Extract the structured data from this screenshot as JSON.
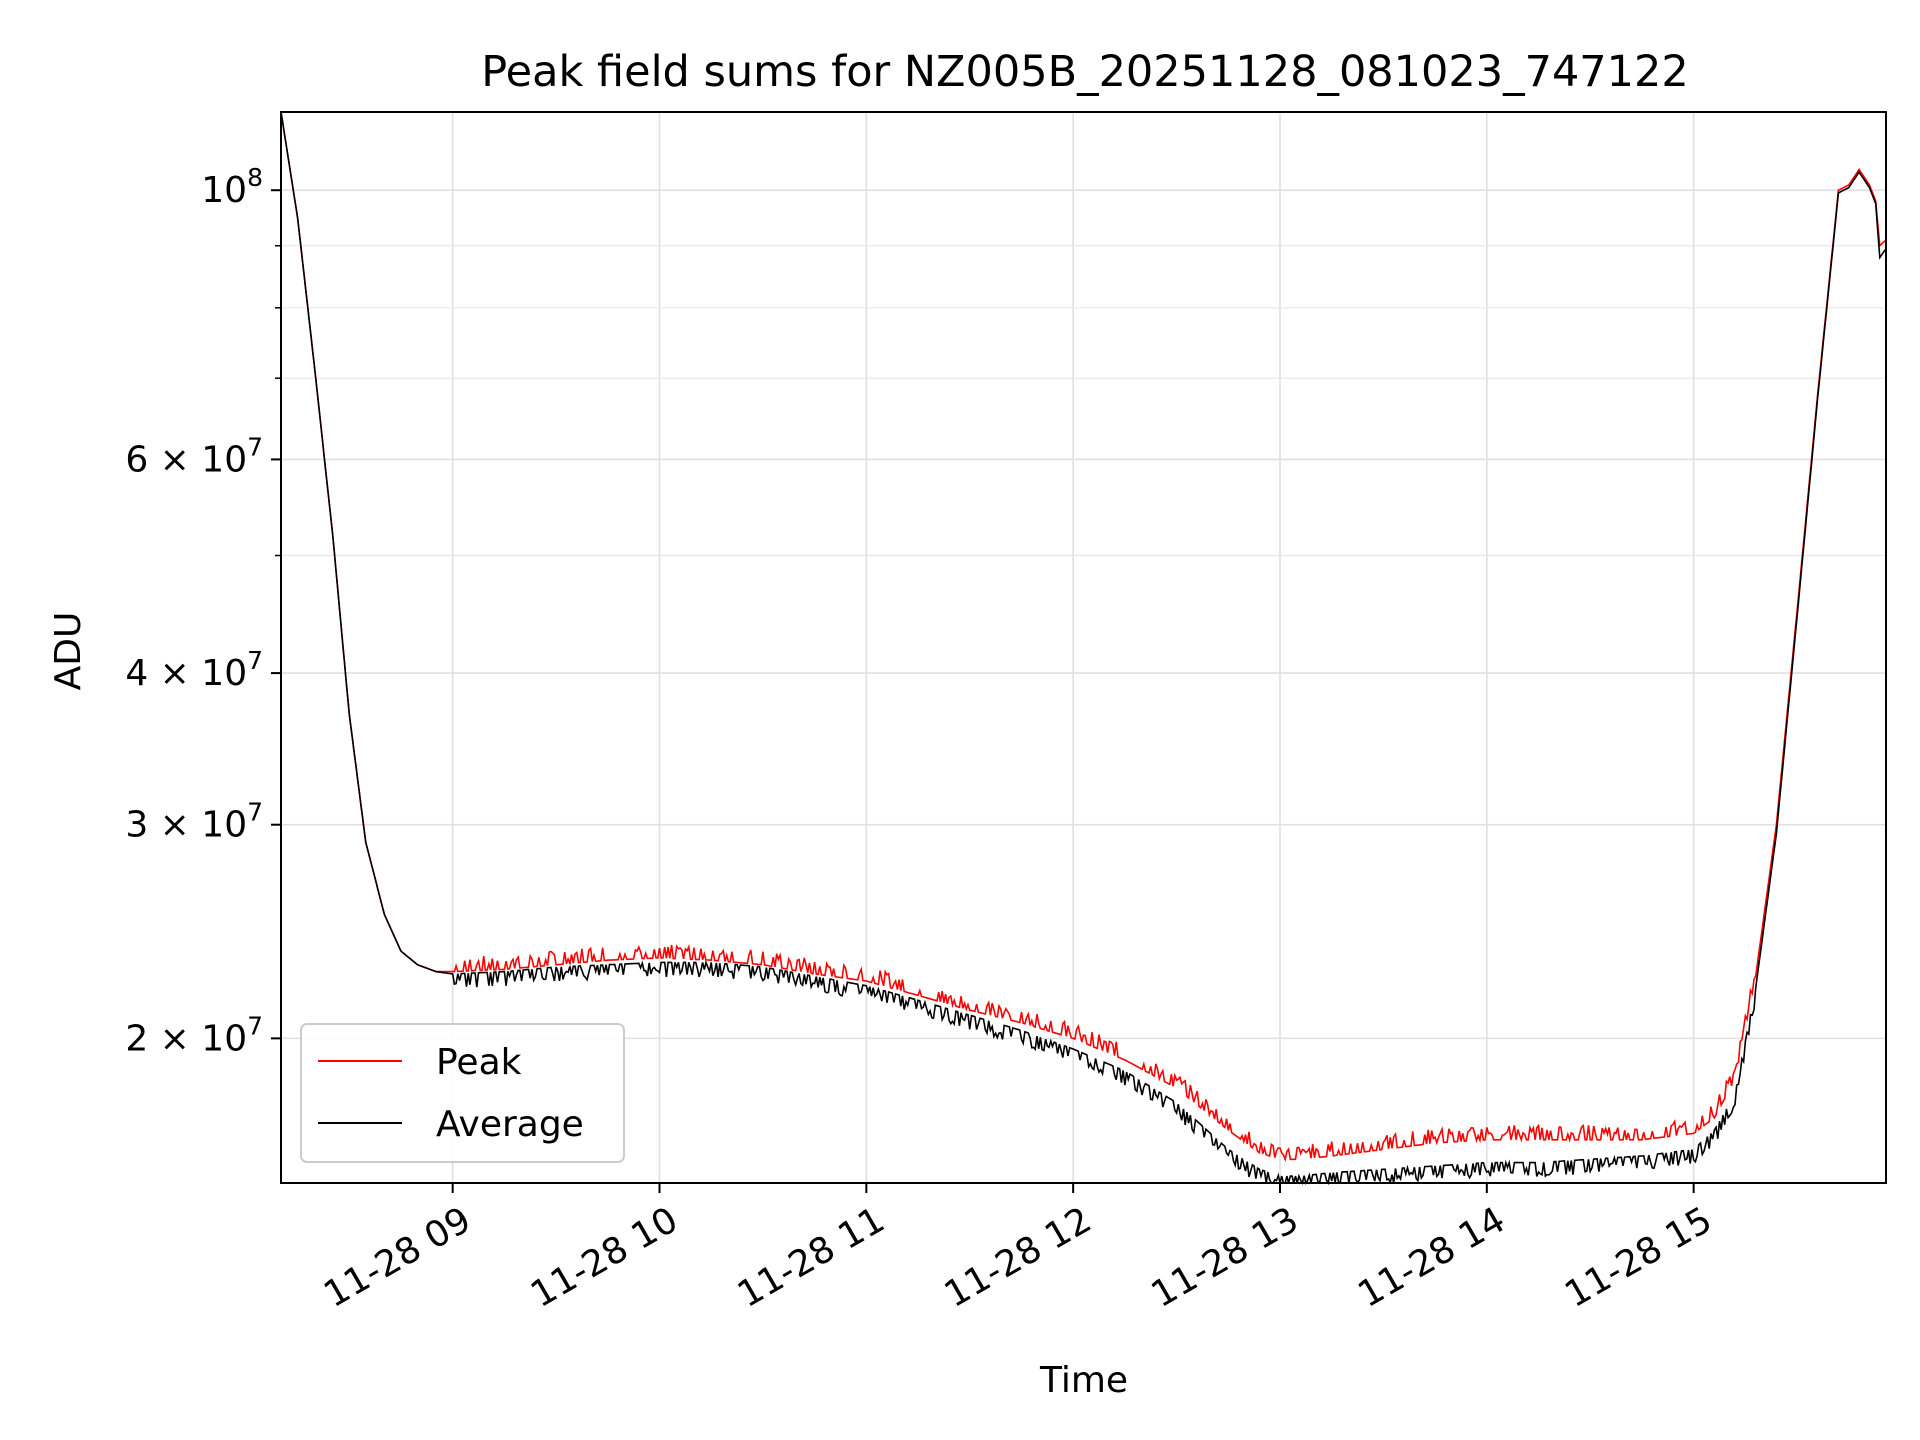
{
  "chart_data": {
    "type": "line",
    "title": "Peak field sums for NZ005B_20251128_081023_747122",
    "xlabel": "Time",
    "ylabel": "ADU",
    "yscale": "log",
    "grid": true,
    "legend_position": "lower-left",
    "xlim": [
      8.17,
      15.93
    ],
    "ylim": [
      15200000,
      116000000
    ],
    "x_ticks": [
      {
        "value": 9,
        "label": "11-28 09"
      },
      {
        "value": 10,
        "label": "11-28 10"
      },
      {
        "value": 11,
        "label": "11-28 11"
      },
      {
        "value": 12,
        "label": "11-28 12"
      },
      {
        "value": 13,
        "label": "11-28 13"
      },
      {
        "value": 14,
        "label": "11-28 14"
      },
      {
        "value": 15,
        "label": "11-28 15"
      }
    ],
    "y_major_ticks": [
      {
        "value": 100000000,
        "base": "10",
        "exp": "8"
      },
      {
        "value": 60000000,
        "mant": "6",
        "exp": "7"
      },
      {
        "value": 40000000,
        "mant": "4",
        "exp": "7"
      },
      {
        "value": 30000000,
        "mant": "3",
        "exp": "7"
      },
      {
        "value": 20000000,
        "mant": "2",
        "exp": "7"
      }
    ],
    "y_minor_gridlines": [
      90000000,
      80000000,
      70000000,
      50000000
    ],
    "times_symbol": "×",
    "series": [
      {
        "name": "Peak",
        "color": "#ff0000",
        "x": [
          8.17,
          8.25,
          8.33,
          8.42,
          8.5,
          8.58,
          8.67,
          8.75,
          8.83,
          8.92,
          9.0,
          9.25,
          9.5,
          9.75,
          10.0,
          10.25,
          10.5,
          10.75,
          11.0,
          11.25,
          11.5,
          11.75,
          12.0,
          12.25,
          12.5,
          12.75,
          12.9,
          13.0,
          13.1,
          13.25,
          13.5,
          13.75,
          14.0,
          14.25,
          14.5,
          14.75,
          15.0,
          15.1,
          15.2,
          15.3,
          15.4,
          15.5,
          15.6,
          15.7,
          15.75,
          15.8,
          15.85,
          15.88,
          15.9,
          15.93
        ],
        "values": [
          116000000,
          95000000,
          72000000,
          52000000,
          37000000,
          29000000,
          25300000,
          23600000,
          23000000,
          22700000,
          22700000,
          22800000,
          23000000,
          23200000,
          23300000,
          23200000,
          23000000,
          22600000,
          22300000,
          21700000,
          21100000,
          20600000,
          20000000,
          19200000,
          18200000,
          16800000,
          16100000,
          15900000,
          15900000,
          16000000,
          16200000,
          16400000,
          16500000,
          16500000,
          16500000,
          16500000,
          16700000,
          17200000,
          18500000,
          22500000,
          30000000,
          45000000,
          68000000,
          100000000,
          101000000,
          104000000,
          101000000,
          98000000,
          90000000,
          91000000
        ]
      },
      {
        "name": "Average",
        "color": "#000000",
        "x": [
          8.17,
          8.25,
          8.33,
          8.42,
          8.5,
          8.58,
          8.67,
          8.75,
          8.83,
          8.92,
          9.0,
          9.25,
          9.5,
          9.75,
          10.0,
          10.25,
          10.5,
          10.75,
          11.0,
          11.25,
          11.5,
          11.75,
          12.0,
          12.25,
          12.5,
          12.75,
          12.9,
          13.0,
          13.1,
          13.25,
          13.5,
          13.75,
          14.0,
          14.25,
          14.5,
          14.75,
          15.0,
          15.1,
          15.2,
          15.3,
          15.4,
          15.5,
          15.6,
          15.7,
          15.75,
          15.8,
          15.85,
          15.88,
          15.9,
          15.93
        ],
        "values": [
          116000000,
          95000000,
          72000000,
          52000000,
          37000000,
          29000000,
          25300000,
          23600000,
          23000000,
          22700000,
          22600000,
          22700000,
          22900000,
          23000000,
          23100000,
          23100000,
          22900000,
          22500000,
          22100000,
          21500000,
          20900000,
          20300000,
          19600000,
          18800000,
          17700000,
          16200000,
          15600000,
          15400000,
          15400000,
          15500000,
          15600000,
          15700000,
          15800000,
          15800000,
          15900000,
          16000000,
          16200000,
          16800000,
          18000000,
          22000000,
          29500000,
          44500000,
          67500000,
          99500000,
          100500000,
          103500000,
          100500000,
          97500000,
          88000000,
          89500000
        ]
      }
    ]
  }
}
